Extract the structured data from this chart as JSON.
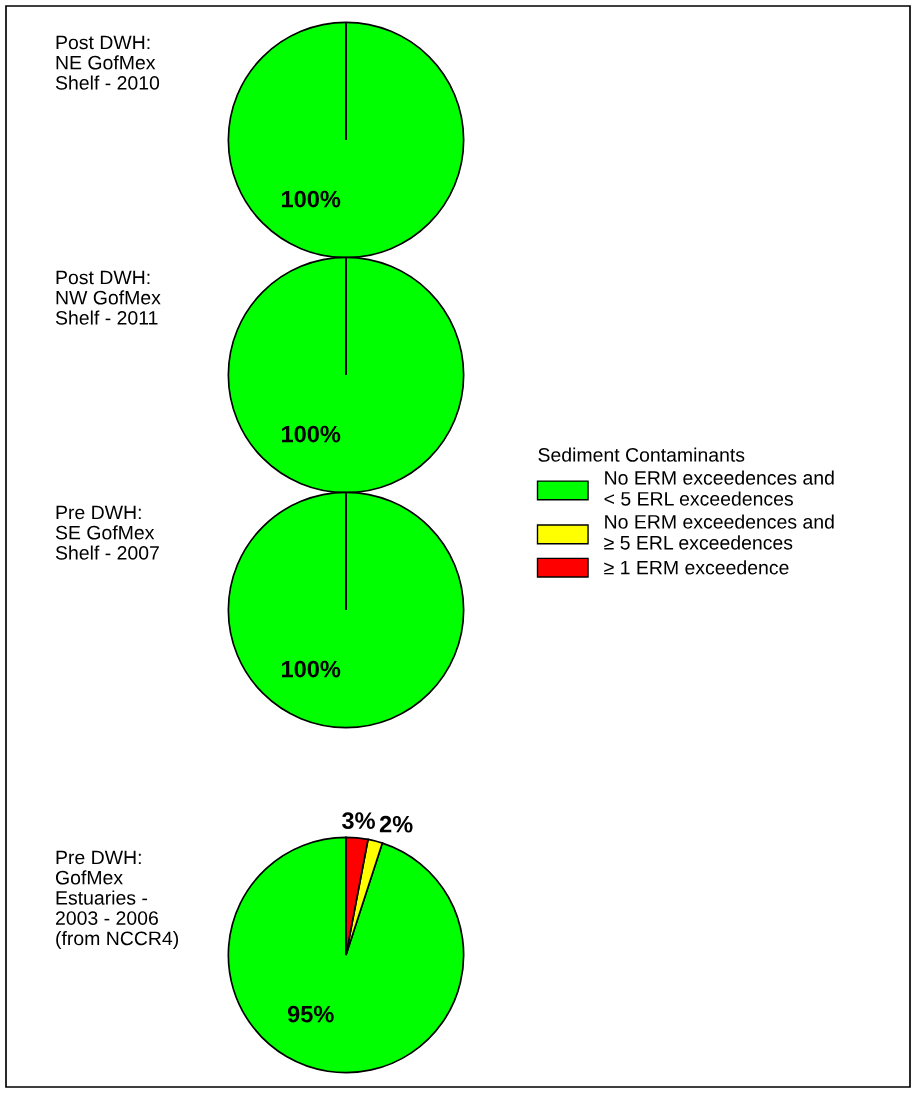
{
  "chart_data": [
    {
      "type": "pie",
      "title": "Post DWH:\nNE GofMex\nShelf - 2010",
      "categories": [
        "No ERM exceedences and\n< 5 ERL exceedences",
        "No ERM exceedences and\n≥ 5 ERL exceedences",
        "≥ 1 ERM exceedence"
      ],
      "values": [
        100,
        0,
        0
      ],
      "colors": [
        "#00ff00",
        "#ffff00",
        "#ff0000"
      ],
      "value_labels": [
        "100%",
        null,
        null
      ],
      "legend": "right",
      "legend_title": "Sediment Contaminants"
    },
    {
      "type": "pie",
      "title": "Post DWH:\nNW GofMex\nShelf - 2011",
      "values": [
        100,
        0,
        0
      ],
      "colors": [
        "#00ff00",
        "#ffff00",
        "#ff0000"
      ],
      "value_labels": [
        "100%",
        null,
        null
      ]
    },
    {
      "type": "pie",
      "title": "Pre DWH:\nSE GofMex\nShelf - 2007",
      "values": [
        100,
        0,
        0
      ],
      "colors": [
        "#00ff00",
        "#ffff00",
        "#ff0000"
      ],
      "value_labels": [
        "100%",
        null,
        null
      ]
    },
    {
      "type": "pie",
      "title": "Pre DWH:\nGofMex\nEstuaries -\n2003 - 2006\n(from NCCR4)",
      "values": [
        95,
        2,
        3
      ],
      "colors": [
        "#00ff00",
        "#ffff00",
        "#ff0000"
      ],
      "value_labels": [
        "95%",
        "2%",
        "3%"
      ]
    }
  ]
}
